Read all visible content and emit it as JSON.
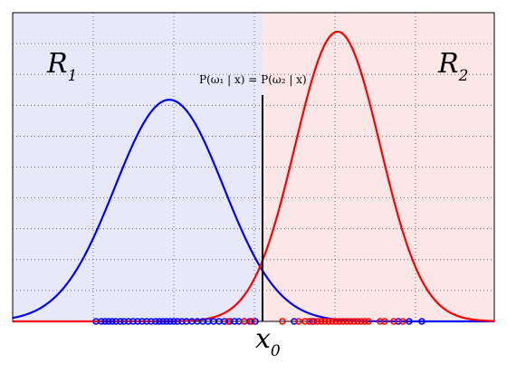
{
  "chart_data": {
    "type": "line",
    "title": "",
    "xlabel": "",
    "ylabel": "",
    "xlim": [
      0,
      570
    ],
    "ylim": [
      0,
      1
    ],
    "grid": true,
    "regions": [
      {
        "name": "R",
        "subscript": "1",
        "x_from": 0,
        "x_to": 290,
        "color": "#e8e8fb"
      },
      {
        "name": "R",
        "subscript": "2",
        "x_from": 290,
        "x_to": 570,
        "color": "#fde6e6"
      }
    ],
    "threshold": {
      "x": 290,
      "height": 0.77,
      "label": "x",
      "label_subscript": "0",
      "annotation": "P(ω₁ | x) = P(ω₂ | x)"
    },
    "series": [
      {
        "mean": 187,
        "sd": 60,
        "peak": 0.765,
        "color": "#0000ff"
      },
      {
        "mean": 373,
        "sd": 47,
        "peak": 1.0,
        "color": "#ff0000"
      }
    ],
    "samples": [
      {
        "color": "#0000ff",
        "x": [
          106,
          112,
          116,
          120,
          124,
          128,
          133,
          137,
          142,
          147,
          152,
          157,
          162,
          167,
          172,
          176,
          180,
          184,
          188,
          192,
          196,
          201,
          206,
          212,
          218,
          224,
          230,
          236,
          242,
          248,
          254,
          259,
          264,
          270,
          276,
          282,
          325,
          345,
          440,
          452,
          466
        ]
      },
      {
        "color": "#ff0000",
        "x": [
          312,
          330,
          337,
          342,
          347,
          351,
          355,
          359,
          363,
          367,
          371,
          375,
          379,
          383,
          387,
          391,
          395,
          399,
          403,
          407,
          420,
          425,
          435,
          445,
          252,
          270,
          278
        ]
      }
    ]
  }
}
